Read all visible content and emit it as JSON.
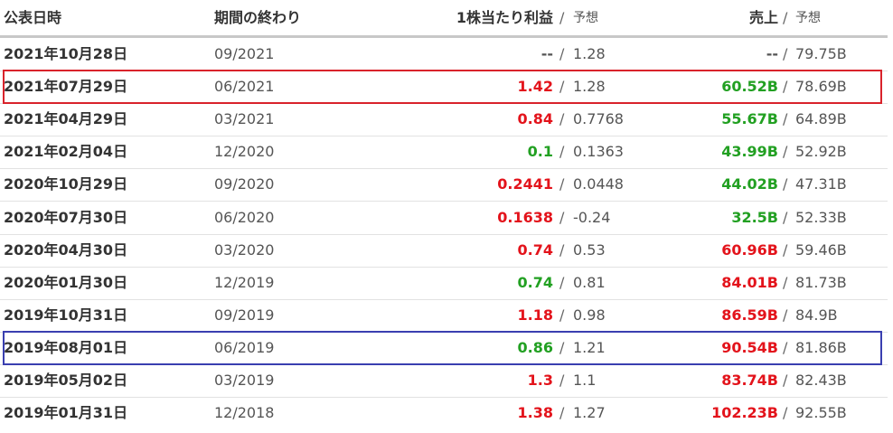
{
  "separator": "/",
  "header": {
    "date": "公表日時",
    "period": "期間の終わり",
    "eps": "1株当たり利益",
    "eps_est": "予想",
    "revenue": "売上",
    "revenue_est": "予想"
  },
  "table": {
    "rows": [
      {
        "date": "2021年10月28日",
        "period": "09/2021",
        "eps": "--",
        "eps_est": "1.28",
        "revenue": "--",
        "revenue_est": "79.75B",
        "eps_color": "#555555",
        "revenue_color": "#555555"
      },
      {
        "date": "2021年07月29日",
        "period": "06/2021",
        "eps": "1.42",
        "eps_est": "1.28",
        "revenue": "60.52B",
        "revenue_est": "78.69B",
        "eps_color": "#e3131b",
        "revenue_color": "#22a022",
        "box": "#d9232b"
      },
      {
        "date": "2021年04月29日",
        "period": "03/2021",
        "eps": "0.84",
        "eps_est": "0.7768",
        "revenue": "55.67B",
        "revenue_est": "64.89B",
        "eps_color": "#e3131b",
        "revenue_color": "#22a022"
      },
      {
        "date": "2021年02月04日",
        "period": "12/2020",
        "eps": "0.1",
        "eps_est": "0.1363",
        "revenue": "43.99B",
        "revenue_est": "52.92B",
        "eps_color": "#22a022",
        "revenue_color": "#22a022"
      },
      {
        "date": "2020年10月29日",
        "period": "09/2020",
        "eps": "0.2441",
        "eps_est": "0.0448",
        "revenue": "44.02B",
        "revenue_est": "47.31B",
        "eps_color": "#e3131b",
        "revenue_color": "#22a022"
      },
      {
        "date": "2020年07月30日",
        "period": "06/2020",
        "eps": "0.1638",
        "eps_est": "-0.24",
        "revenue": "32.5B",
        "revenue_est": "52.33B",
        "eps_color": "#e3131b",
        "revenue_color": "#22a022"
      },
      {
        "date": "2020年04月30日",
        "period": "03/2020",
        "eps": "0.74",
        "eps_est": "0.53",
        "revenue": "60.96B",
        "revenue_est": "59.46B",
        "eps_color": "#e3131b",
        "revenue_color": "#e3131b"
      },
      {
        "date": "2020年01月30日",
        "period": "12/2019",
        "eps": "0.74",
        "eps_est": "0.81",
        "revenue": "84.01B",
        "revenue_est": "81.73B",
        "eps_color": "#22a022",
        "revenue_color": "#e3131b"
      },
      {
        "date": "2019年10月31日",
        "period": "09/2019",
        "eps": "1.18",
        "eps_est": "0.98",
        "revenue": "86.59B",
        "revenue_est": "84.9B",
        "eps_color": "#e3131b",
        "revenue_color": "#e3131b"
      },
      {
        "date": "2019年08月01日",
        "period": "06/2019",
        "eps": "0.86",
        "eps_est": "1.21",
        "revenue": "90.54B",
        "revenue_est": "81.86B",
        "eps_color": "#22a022",
        "revenue_color": "#e3131b",
        "box": "#3a3fb0"
      },
      {
        "date": "2019年05月02日",
        "period": "03/2019",
        "eps": "1.3",
        "eps_est": "1.1",
        "revenue": "83.74B",
        "revenue_est": "82.43B",
        "eps_color": "#e3131b",
        "revenue_color": "#e3131b"
      },
      {
        "date": "2019年01月31日",
        "period": "12/2018",
        "eps": "1.38",
        "eps_est": "1.27",
        "revenue": "102.23B",
        "revenue_est": "92.55B",
        "eps_color": "#e3131b",
        "revenue_color": "#e3131b"
      }
    ]
  }
}
